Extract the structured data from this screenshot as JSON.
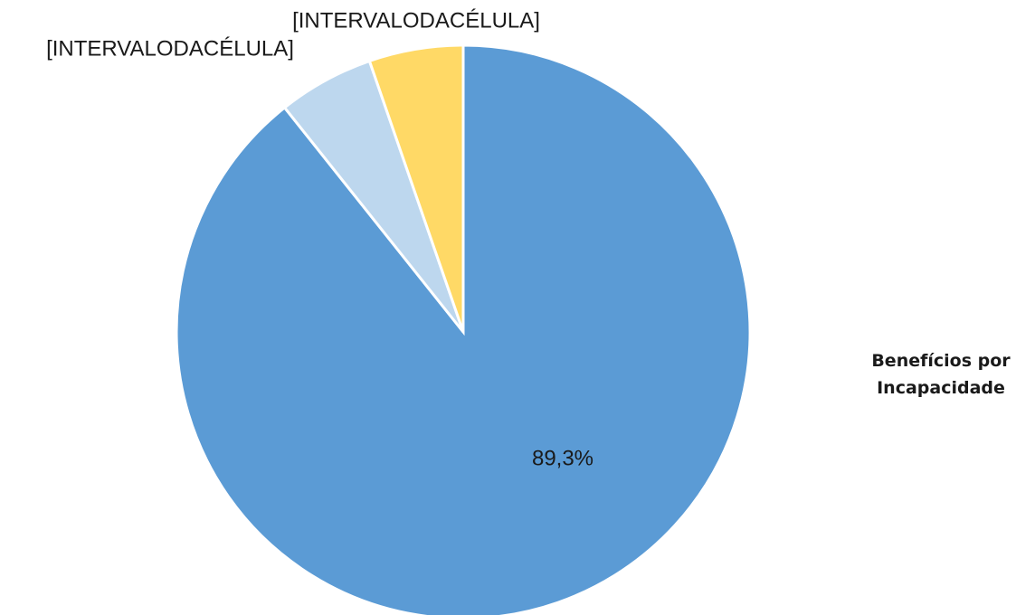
{
  "chart_data": {
    "type": "pie",
    "categories": [
      "Benefícios por Incapacidade",
      null,
      null
    ],
    "values": [
      89.3,
      5.4,
      5.3
    ],
    "value_labels": [
      "89,3%",
      "[INTERVALODACÉLULA]",
      "[INTERVALODACÉLULA]"
    ],
    "colors": [
      "#5b9bd5",
      "#bdd7ee",
      "#ffd966"
    ]
  }
}
